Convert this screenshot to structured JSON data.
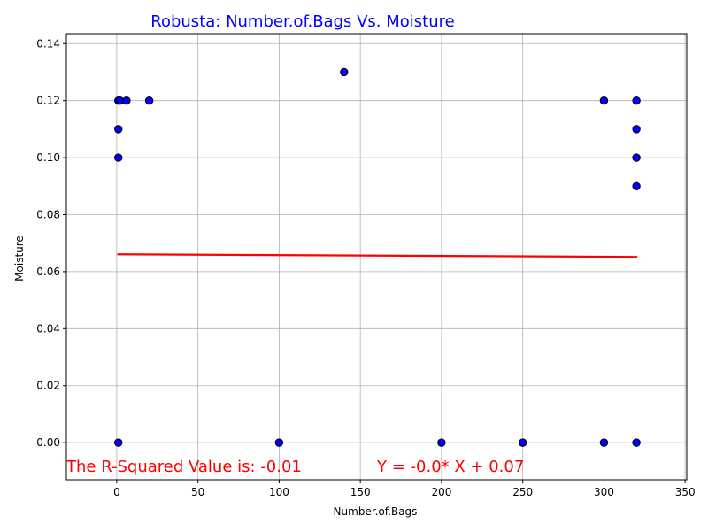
{
  "chart_data": {
    "type": "scatter",
    "title": "Robusta: Number.of.Bags Vs. Moisture",
    "xlabel": "Number.of.Bags",
    "ylabel": "Moisture",
    "xlim": [
      -31,
      351
    ],
    "ylim": [
      -0.013,
      0.1435
    ],
    "xticks": [
      0,
      50,
      100,
      150,
      200,
      250,
      300,
      350
    ],
    "xtick_labels": [
      "0",
      "50",
      "100",
      "150",
      "200",
      "250",
      "300",
      "350"
    ],
    "yticks": [
      0.0,
      0.02,
      0.04,
      0.06,
      0.08,
      0.1,
      0.12,
      0.14
    ],
    "ytick_labels": [
      "0.00",
      "0.02",
      "0.04",
      "0.06",
      "0.08",
      "0.10",
      "0.12",
      "0.14"
    ],
    "grid": true,
    "points": [
      {
        "x": 1,
        "y": 0.12
      },
      {
        "x": 2,
        "y": 0.12
      },
      {
        "x": 6,
        "y": 0.12
      },
      {
        "x": 20,
        "y": 0.12
      },
      {
        "x": 1,
        "y": 0.11
      },
      {
        "x": 1,
        "y": 0.1
      },
      {
        "x": 140,
        "y": 0.13
      },
      {
        "x": 300,
        "y": 0.12
      },
      {
        "x": 320,
        "y": 0.12
      },
      {
        "x": 320,
        "y": 0.11
      },
      {
        "x": 320,
        "y": 0.1
      },
      {
        "x": 320,
        "y": 0.09
      },
      {
        "x": 1,
        "y": 0.0
      },
      {
        "x": 100,
        "y": 0.0
      },
      {
        "x": 200,
        "y": 0.0
      },
      {
        "x": 250,
        "y": 0.0
      },
      {
        "x": 300,
        "y": 0.0
      },
      {
        "x": 320,
        "y": 0.0
      }
    ],
    "regression_line": {
      "x": [
        1,
        320
      ],
      "y": [
        0.0661,
        0.0652
      ],
      "color": "#ff0000"
    },
    "annotations": {
      "r_squared": "The R-Squared Value is: -0.01",
      "equation": "Y = -0.0* X + 0.07"
    },
    "colors": {
      "title": "#0000ff",
      "point_fill": "#0000ff",
      "point_edge": "#000000",
      "line": "#ff0000",
      "annotation": "#ff0000",
      "grid": "#b0b0b0"
    }
  }
}
